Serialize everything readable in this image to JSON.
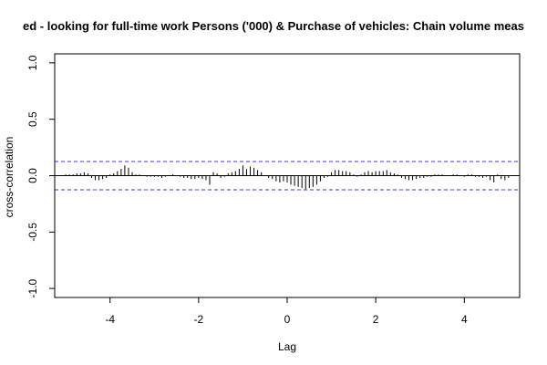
{
  "chart_data": {
    "type": "bar",
    "title": "ed - looking for full-time work Persons ('000) & Purchase of vehicles: Chain volume meas",
    "xlabel": "Lag",
    "ylabel": "cross-correlation",
    "xlim": [
      -5.25,
      5.25
    ],
    "ylim": [
      -1.08,
      1.08
    ],
    "x_ticks": [
      -4,
      -2,
      0,
      2,
      4
    ],
    "x_tick_labels": [
      "-4",
      "-2",
      "0",
      "2",
      "4"
    ],
    "y_ticks": [
      -1.0,
      -0.5,
      0.0,
      0.5,
      1.0
    ],
    "y_tick_labels": [
      "-1.0",
      "-0.5",
      "0.0",
      "0.5",
      "1.0"
    ],
    "lag_step": 0.0833,
    "lags": [
      -5.0,
      -4.917,
      -4.833,
      -4.75,
      -4.667,
      -4.583,
      -4.5,
      -4.417,
      -4.333,
      -4.25,
      -4.167,
      -4.083,
      -4.0,
      -3.917,
      -3.833,
      -3.75,
      -3.667,
      -3.583,
      -3.5,
      -3.417,
      -3.333,
      -3.25,
      -3.167,
      -3.083,
      -3.0,
      -2.917,
      -2.833,
      -2.75,
      -2.667,
      -2.583,
      -2.5,
      -2.417,
      -2.333,
      -2.25,
      -2.167,
      -2.083,
      -2.0,
      -1.917,
      -1.833,
      -1.75,
      -1.667,
      -1.583,
      -1.5,
      -1.417,
      -1.333,
      -1.25,
      -1.167,
      -1.083,
      -1.0,
      -0.917,
      -0.833,
      -0.75,
      -0.667,
      -0.583,
      -0.5,
      -0.417,
      -0.333,
      -0.25,
      -0.167,
      -0.083,
      0.0,
      0.083,
      0.167,
      0.25,
      0.333,
      0.417,
      0.5,
      0.583,
      0.667,
      0.75,
      0.833,
      0.917,
      1.0,
      1.083,
      1.167,
      1.25,
      1.333,
      1.417,
      1.5,
      1.583,
      1.667,
      1.75,
      1.833,
      1.917,
      2.0,
      2.083,
      2.167,
      2.25,
      2.333,
      2.417,
      2.5,
      2.583,
      2.667,
      2.75,
      2.833,
      2.917,
      3.0,
      3.083,
      3.167,
      3.25,
      3.333,
      3.417,
      3.5,
      3.583,
      3.667,
      3.75,
      3.833,
      3.917,
      4.0,
      4.083,
      4.167,
      4.25,
      4.333,
      4.417,
      4.5,
      4.583,
      4.667,
      4.75,
      4.833,
      4.917,
      5.0
    ],
    "values": [
      0.01,
      0.01,
      0.01,
      0.02,
      0.02,
      0.03,
      0.02,
      -0.02,
      -0.04,
      -0.04,
      -0.03,
      -0.02,
      0.01,
      0.02,
      0.04,
      0.06,
      0.09,
      0.07,
      0.03,
      0.01,
      0.01,
      0.0,
      -0.01,
      -0.01,
      -0.01,
      -0.01,
      -0.02,
      -0.01,
      0.0,
      0.01,
      0.0,
      -0.01,
      -0.02,
      -0.02,
      -0.03,
      -0.03,
      -0.02,
      -0.03,
      -0.04,
      -0.08,
      0.03,
      0.02,
      -0.02,
      -0.01,
      0.02,
      0.03,
      0.04,
      0.06,
      0.09,
      0.06,
      0.08,
      0.07,
      0.05,
      0.03,
      0.0,
      -0.02,
      -0.03,
      -0.05,
      -0.06,
      -0.05,
      -0.06,
      -0.08,
      -0.09,
      -0.1,
      -0.11,
      -0.12,
      -0.11,
      -0.1,
      -0.08,
      -0.05,
      -0.02,
      -0.01,
      0.03,
      0.05,
      0.05,
      0.04,
      0.04,
      0.03,
      0.01,
      -0.01,
      0.01,
      0.03,
      0.04,
      0.03,
      0.04,
      0.04,
      0.04,
      0.05,
      0.03,
      0.02,
      0.01,
      -0.02,
      -0.03,
      -0.04,
      -0.04,
      -0.03,
      -0.02,
      -0.02,
      -0.01,
      -0.01,
      0.01,
      0.01,
      0.01,
      0.0,
      0.0,
      0.01,
      0.01,
      0.0,
      -0.01,
      0.01,
      0.01,
      -0.01,
      -0.01,
      -0.02,
      -0.01,
      -0.04,
      -0.06,
      0.01,
      -0.03,
      -0.04,
      -0.02
    ],
    "confidence_band": [
      0.125,
      -0.125
    ],
    "colors": {
      "bars": "#000000",
      "confidence_band": "#3333ff",
      "zero_line": "#000000",
      "frame": "#000000"
    },
    "grid": false
  }
}
